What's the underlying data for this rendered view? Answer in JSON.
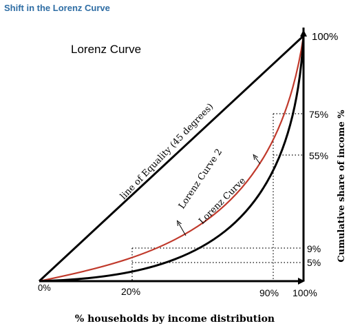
{
  "heading": "Shift in the Lorenz Curve",
  "diagram": {
    "title": "Lorenz Curve",
    "equality_label": "line of Equality (45 degrees)",
    "curve2_label": "Lorenz Curve 2",
    "curve1_label": "Lorenz Curve",
    "x_axis_label": "% households by income distribution",
    "y_axis_label": "Cumulative share of income %",
    "x_ticks": {
      "origin": "0%",
      "t20": "20%",
      "t90": "90%",
      "t100": "100%"
    },
    "y_ticks": {
      "top": "100%",
      "t75": "75%",
      "t55": "55%",
      "t9": "9%",
      "t5": "5%"
    }
  },
  "colors": {
    "heading": "#2e6da4",
    "curve2": "#c0392b",
    "curve1": "#000000",
    "axis": "#000000"
  }
}
